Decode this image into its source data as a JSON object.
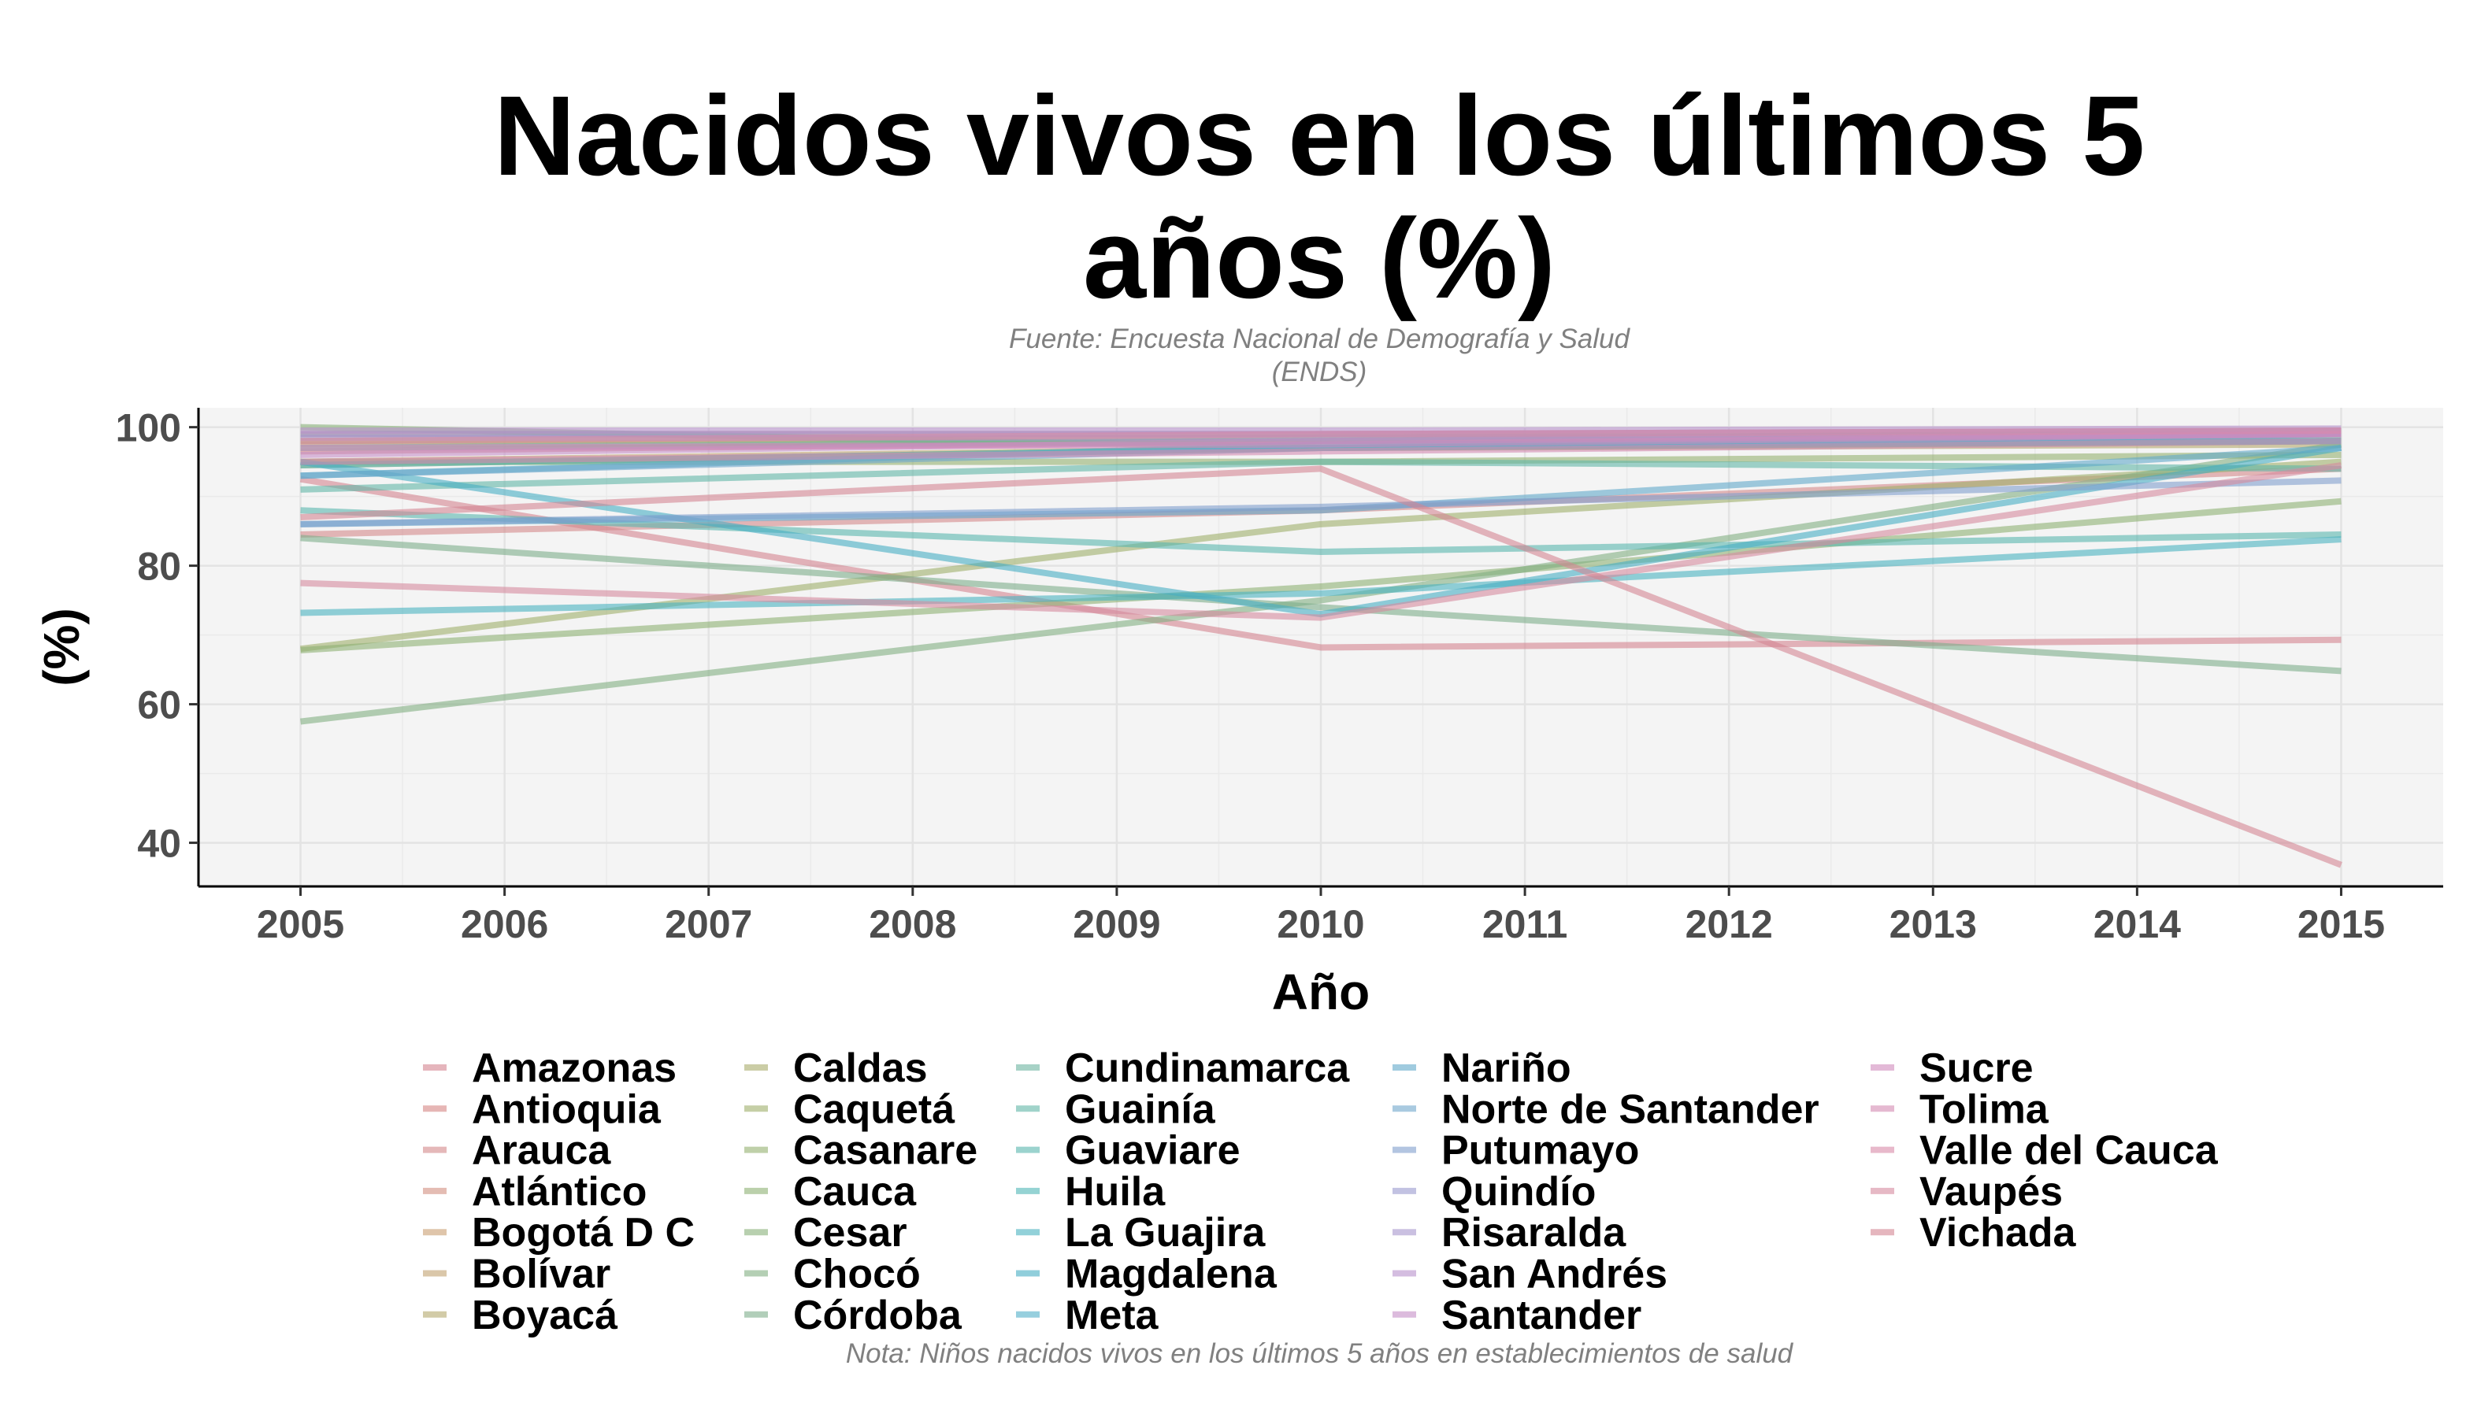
{
  "chart_data": {
    "type": "line",
    "title": "Nacidos vivos en los últimos 5 años (%)",
    "title_lines": [
      "Nacidos vivos en los últimos 5",
      "años (%)"
    ],
    "subtitle_lines": [
      "Fuente: Encuesta Nacional de Demografía y Salud",
      "(ENDS)"
    ],
    "caption": "Nota: Niños nacidos vivos en los últimos 5 años en establecimientos de salud",
    "xlabel": "Año",
    "ylabel": "(%)",
    "x_ticks": [
      2005,
      2006,
      2007,
      2008,
      2009,
      2010,
      2011,
      2012,
      2013,
      2014,
      2015
    ],
    "y_ticks": [
      40,
      60,
      80,
      100
    ],
    "xlim": [
      2004.5,
      2015.5
    ],
    "ylim": [
      33.7,
      102.8
    ],
    "grid": true,
    "legend_position": "bottom",
    "x": [
      2005,
      2010,
      2015
    ],
    "series": [
      {
        "name": "Amazonas",
        "color": "#D4848F",
        "values": [
          92.5,
          68.2,
          69.3
        ]
      },
      {
        "name": "Antioquia",
        "color": "#D68583",
        "values": [
          96.5,
          98.0,
          99.5
        ]
      },
      {
        "name": "Arauca",
        "color": "#D4898A",
        "values": [
          84.5,
          88.0,
          94.0
        ]
      },
      {
        "name": "Atlántico",
        "color": "#D29081",
        "values": [
          97.5,
          98.0,
          99.0
        ]
      },
      {
        "name": "Bogotá D C",
        "color": "#C99E72",
        "values": [
          99.0,
          99.0,
          99.5
        ]
      },
      {
        "name": "Bolívar",
        "color": "#C1A26F",
        "values": [
          95.0,
          97.0,
          98.0
        ]
      },
      {
        "name": "Boyacá",
        "color": "#B4A86C",
        "values": [
          94.5,
          97.0,
          97.5
        ]
      },
      {
        "name": "Caldas",
        "color": "#A9AC6A",
        "values": [
          98.0,
          98.5,
          99.0
        ]
      },
      {
        "name": "Caquetá",
        "color": "#9FAF6B",
        "values": [
          68.0,
          86.0,
          95.0
        ]
      },
      {
        "name": "Casanare",
        "color": "#95B06F",
        "values": [
          95.0,
          95.0,
          96.0
        ]
      },
      {
        "name": "Cauca",
        "color": "#8DB073",
        "values": [
          67.8,
          77.0,
          89.3
        ]
      },
      {
        "name": "Cesar",
        "color": "#88B07A",
        "values": [
          100.0,
          97.0,
          98.0
        ]
      },
      {
        "name": "Chocó",
        "color": "#82AF82",
        "values": [
          57.5,
          75.0,
          97.5
        ]
      },
      {
        "name": "Córdoba",
        "color": "#7DAD8A",
        "values": [
          84.0,
          74.0,
          64.8
        ]
      },
      {
        "name": "Cundinamarca",
        "color": "#6CB4A0",
        "values": [
          97.0,
          98.0,
          98.5
        ]
      },
      {
        "name": "Guainía",
        "color": "#61B6A6",
        "values": [
          91.0,
          95.0,
          94.0
        ]
      },
      {
        "name": "Guaviare",
        "color": "#58B5AD",
        "values": [
          88.0,
          82.0,
          84.5
        ]
      },
      {
        "name": "Huila",
        "color": "#4FB5B6",
        "values": [
          94.5,
          97.0,
          98.0
        ]
      },
      {
        "name": "La Guajira",
        "color": "#4AB2BF",
        "values": [
          73.2,
          76.0,
          83.8
        ]
      },
      {
        "name": "Magdalena",
        "color": "#46ADC3",
        "values": [
          95.0,
          73.0,
          97.0
        ]
      },
      {
        "name": "Meta",
        "color": "#50AFC8",
        "values": [
          93.0,
          97.5,
          98.0
        ]
      },
      {
        "name": "Nariño",
        "color": "#61A9CA",
        "values": [
          86.0,
          88.0,
          97.0
        ]
      },
      {
        "name": "Norte de Santander",
        "color": "#70A6CB",
        "values": [
          93.0,
          97.0,
          99.0
        ]
      },
      {
        "name": "Putumayo",
        "color": "#819FCD",
        "values": [
          86.0,
          88.5,
          92.3
        ]
      },
      {
        "name": "Quindío",
        "color": "#9A9ACE",
        "values": [
          99.0,
          99.0,
          99.5
        ]
      },
      {
        "name": "Risaralda",
        "color": "#A796CD",
        "values": [
          98.5,
          98.5,
          99.0
        ]
      },
      {
        "name": "San Andrés",
        "color": "#B891CB",
        "values": [
          99.5,
          99.5,
          99.8
        ]
      },
      {
        "name": "Santander",
        "color": "#C58DC6",
        "values": [
          96.0,
          98.0,
          99.0
        ]
      },
      {
        "name": "Sucre",
        "color": "#D08BBD",
        "values": [
          97.0,
          97.5,
          99.0
        ]
      },
      {
        "name": "Tolima",
        "color": "#D48AB3",
        "values": [
          95.0,
          96.5,
          98.0
        ]
      },
      {
        "name": "Valle del Cauca",
        "color": "#D88AA8",
        "values": [
          98.0,
          99.0,
          99.5
        ]
      },
      {
        "name": "Vaupés",
        "color": "#D68A9E",
        "values": [
          77.5,
          72.5,
          94.5
        ]
      },
      {
        "name": "Vichada",
        "color": "#D48693",
        "values": [
          87.0,
          94.0,
          36.8
        ]
      }
    ]
  }
}
